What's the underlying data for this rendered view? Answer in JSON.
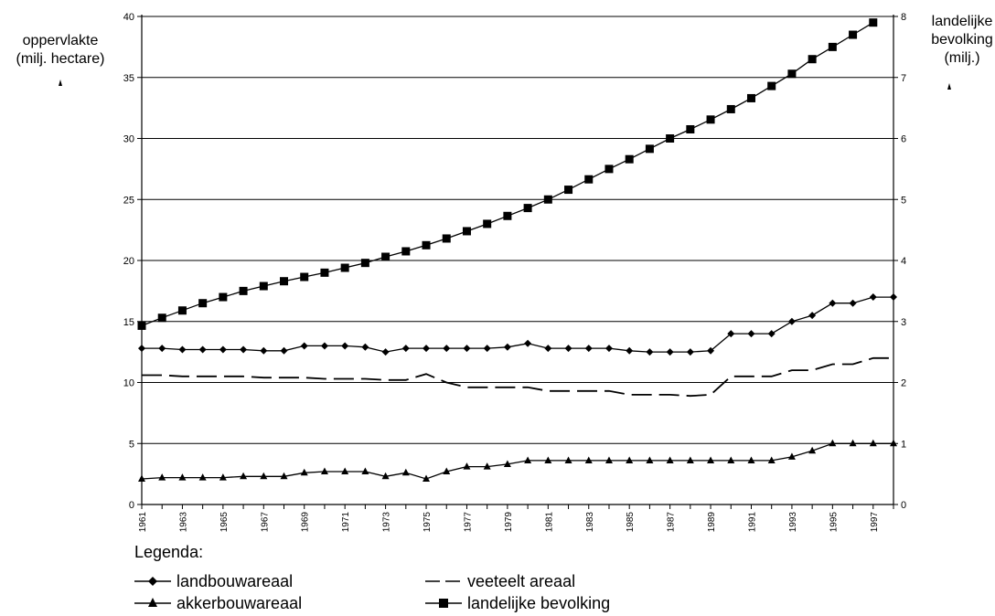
{
  "chart_data": {
    "type": "line",
    "left_axis_label_lines": [
      "oppervlakte",
      "(milj. hectare)"
    ],
    "right_axis_label_lines": [
      "landelijke",
      "bevolking",
      "(milj.)"
    ],
    "left_ylim": [
      0,
      40
    ],
    "left_yticks": [
      0,
      5,
      10,
      15,
      20,
      25,
      30,
      35,
      40
    ],
    "right_ylim": [
      0,
      8
    ],
    "right_yticks": [
      0,
      1,
      2,
      3,
      4,
      5,
      6,
      7,
      8
    ],
    "x": [
      1961,
      1962,
      1963,
      1964,
      1965,
      1966,
      1967,
      1968,
      1969,
      1970,
      1971,
      1972,
      1973,
      1974,
      1975,
      1976,
      1977,
      1978,
      1979,
      1980,
      1981,
      1982,
      1983,
      1984,
      1985,
      1986,
      1987,
      1988,
      1989,
      1990,
      1991,
      1992,
      1993,
      1994,
      1995,
      1996,
      1997,
      1998
    ],
    "xtick_labels": [
      "1961",
      "1963",
      "1965",
      "1967",
      "1969",
      "1971",
      "1973",
      "1975",
      "1977",
      "1979",
      "1981",
      "1983",
      "1985",
      "1987",
      "1989",
      "1991",
      "1993",
      "1995",
      "1997"
    ],
    "grid": "horizontal",
    "series": [
      {
        "name": "landbouwareaal",
        "axis": "left",
        "marker": "diamond",
        "style": "solid",
        "values": [
          12.8,
          12.8,
          12.7,
          12.7,
          12.7,
          12.7,
          12.6,
          12.6,
          13.0,
          13.0,
          13.0,
          12.9,
          12.5,
          12.8,
          12.8,
          12.8,
          12.8,
          12.8,
          12.9,
          13.2,
          12.8,
          12.8,
          12.8,
          12.8,
          12.6,
          12.5,
          12.5,
          12.5,
          12.6,
          14.0,
          14.0,
          14.0,
          15.0,
          15.5,
          16.5,
          16.5,
          17.0,
          17.0
        ]
      },
      {
        "name": "veeteelt areaal",
        "axis": "left",
        "marker": "none",
        "style": "dashed",
        "values": [
          10.6,
          10.6,
          10.5,
          10.5,
          10.5,
          10.5,
          10.4,
          10.4,
          10.4,
          10.3,
          10.3,
          10.3,
          10.2,
          10.2,
          10.7,
          10.0,
          9.6,
          9.6,
          9.6,
          9.6,
          9.3,
          9.3,
          9.3,
          9.3,
          9.0,
          9.0,
          9.0,
          8.9,
          9.0,
          10.5,
          10.5,
          10.5,
          11.0,
          11.0,
          11.5,
          11.5,
          12.0,
          12.0
        ]
      },
      {
        "name": "akkerbouwareaal",
        "axis": "left",
        "marker": "triangle",
        "style": "solid",
        "values": [
          2.1,
          2.2,
          2.2,
          2.2,
          2.2,
          2.3,
          2.3,
          2.3,
          2.6,
          2.7,
          2.7,
          2.7,
          2.3,
          2.6,
          2.1,
          2.7,
          3.1,
          3.1,
          3.3,
          3.6,
          3.6,
          3.6,
          3.6,
          3.6,
          3.6,
          3.6,
          3.6,
          3.6,
          3.6,
          3.6,
          3.6,
          3.6,
          3.9,
          4.4,
          5.0,
          5.0,
          5.0,
          5.0
        ]
      },
      {
        "name": "landelijke bevolking",
        "axis": "right",
        "marker": "square",
        "style": "solid",
        "values": [
          2.93,
          3.06,
          3.18,
          3.3,
          3.4,
          3.5,
          3.58,
          3.66,
          3.73,
          3.8,
          3.88,
          3.96,
          4.06,
          4.15,
          4.25,
          4.36,
          4.48,
          4.6,
          4.73,
          4.86,
          5.0,
          5.16,
          5.33,
          5.5,
          5.66,
          5.83,
          6.0,
          6.15,
          6.31,
          6.48,
          6.66,
          6.86,
          7.06,
          7.3,
          7.5,
          7.7,
          7.9,
          null
        ]
      }
    ]
  },
  "legend": {
    "title": "Legenda:",
    "items": [
      {
        "label": "landbouwareaal",
        "marker": "diamond",
        "style": "solid"
      },
      {
        "label": "veeteelt areaal",
        "marker": "none",
        "style": "dashed"
      },
      {
        "label": "akkerbouwareaal",
        "marker": "triangle",
        "style": "solid"
      },
      {
        "label": "landelijke bevolking",
        "marker": "square",
        "style": "solid"
      }
    ]
  }
}
